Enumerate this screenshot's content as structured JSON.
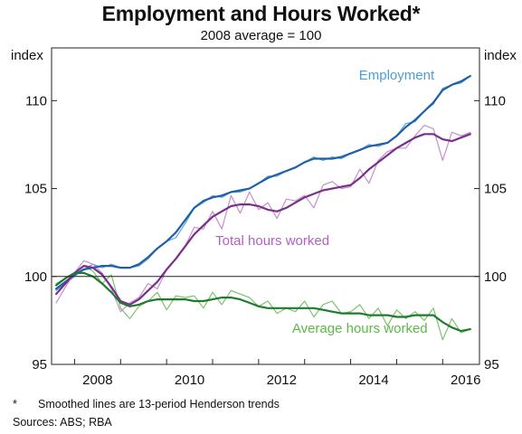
{
  "chart_data": {
    "type": "line",
    "title": "Employment and Hours Worked*",
    "subtitle": "2008 average = 100",
    "ylabel": "index",
    "ylim": [
      95,
      113
    ],
    "yticks": [
      95,
      100,
      105,
      110
    ],
    "xlim": [
      2007.5,
      2016.8
    ],
    "xticks": [
      2008,
      2010,
      2012,
      2014,
      2016
    ],
    "reference_line": 100,
    "grid": false,
    "series": [
      {
        "name": "Employment",
        "color": "#5aa7dc",
        "style": "raw",
        "x": [
          2007.6,
          2007.8,
          2008.0,
          2008.2,
          2008.4,
          2008.6,
          2008.8,
          2009.0,
          2009.2,
          2009.4,
          2009.6,
          2009.8,
          2010.0,
          2010.2,
          2010.4,
          2010.6,
          2010.8,
          2011.0,
          2011.2,
          2011.4,
          2011.6,
          2011.8,
          2012.0,
          2012.2,
          2012.4,
          2012.6,
          2012.8,
          2013.0,
          2013.2,
          2013.4,
          2013.6,
          2013.8,
          2014.0,
          2014.2,
          2014.4,
          2014.6,
          2014.8,
          2015.0,
          2015.2,
          2015.4,
          2015.6,
          2015.8,
          2016.0,
          2016.2,
          2016.4,
          2016.6
        ],
        "values": [
          99.2,
          99.6,
          100.0,
          100.4,
          100.7,
          100.5,
          100.7,
          100.5,
          100.5,
          100.6,
          101.0,
          101.6,
          102.0,
          102.2,
          103.0,
          103.9,
          104.2,
          104.6,
          104.5,
          104.8,
          104.8,
          105.0,
          105.3,
          105.7,
          105.7,
          106.0,
          106.2,
          106.5,
          106.8,
          106.6,
          106.8,
          106.7,
          107.0,
          107.2,
          107.5,
          107.4,
          107.6,
          108.0,
          108.7,
          108.8,
          109.4,
          109.8,
          110.7,
          110.9,
          111.0,
          111.4
        ]
      },
      {
        "name": "",
        "color": "#1f5fa8",
        "style": "trend",
        "x": [
          2007.6,
          2007.8,
          2008.0,
          2008.2,
          2008.4,
          2008.6,
          2008.8,
          2009.0,
          2009.2,
          2009.4,
          2009.6,
          2009.8,
          2010.0,
          2010.2,
          2010.4,
          2010.6,
          2010.8,
          2011.0,
          2011.2,
          2011.4,
          2011.6,
          2011.8,
          2012.0,
          2012.2,
          2012.4,
          2012.6,
          2012.8,
          2013.0,
          2013.2,
          2013.4,
          2013.6,
          2013.8,
          2014.0,
          2014.2,
          2014.4,
          2014.6,
          2014.8,
          2015.0,
          2015.2,
          2015.4,
          2015.6,
          2015.8,
          2016.0,
          2016.2,
          2016.4,
          2016.6
        ],
        "values": [
          99.3,
          99.7,
          100.1,
          100.4,
          100.5,
          100.6,
          100.6,
          100.5,
          100.5,
          100.7,
          101.1,
          101.6,
          102.0,
          102.5,
          103.2,
          103.9,
          104.3,
          104.5,
          104.6,
          104.8,
          104.9,
          105.0,
          105.3,
          105.6,
          105.8,
          106.0,
          106.2,
          106.5,
          106.7,
          106.7,
          106.7,
          106.8,
          107.0,
          107.2,
          107.4,
          107.5,
          107.6,
          108.0,
          108.5,
          108.9,
          109.4,
          109.9,
          110.6,
          110.9,
          111.1,
          111.4
        ]
      },
      {
        "name": "Total hours worked",
        "color": "#c58ed2",
        "style": "raw",
        "x": [
          2007.6,
          2007.8,
          2008.0,
          2008.2,
          2008.4,
          2008.6,
          2008.8,
          2009.0,
          2009.2,
          2009.4,
          2009.6,
          2009.8,
          2010.0,
          2010.2,
          2010.4,
          2010.6,
          2010.8,
          2011.0,
          2011.2,
          2011.4,
          2011.6,
          2011.8,
          2012.0,
          2012.2,
          2012.4,
          2012.6,
          2012.8,
          2013.0,
          2013.2,
          2013.4,
          2013.6,
          2013.8,
          2014.0,
          2014.2,
          2014.4,
          2014.6,
          2014.8,
          2015.0,
          2015.2,
          2015.4,
          2015.6,
          2015.8,
          2016.0,
          2016.2,
          2016.4,
          2016.6
        ],
        "values": [
          98.5,
          99.4,
          100.2,
          100.9,
          100.7,
          100.2,
          99.3,
          98.0,
          98.5,
          98.8,
          99.6,
          99.3,
          100.4,
          101.0,
          101.7,
          102.8,
          102.7,
          103.7,
          102.7,
          104.6,
          103.6,
          104.8,
          103.8,
          104.2,
          103.3,
          104.4,
          104.3,
          104.6,
          103.9,
          105.2,
          105.4,
          105.0,
          105.1,
          106.1,
          105.3,
          106.6,
          107.1,
          107.3,
          107.3,
          108.0,
          108.6,
          108.4,
          106.6,
          108.2,
          108.0,
          108.2
        ]
      },
      {
        "name": "",
        "color": "#7a2f8a",
        "style": "trend",
        "x": [
          2007.6,
          2007.8,
          2008.0,
          2008.2,
          2008.4,
          2008.6,
          2008.8,
          2009.0,
          2009.2,
          2009.4,
          2009.6,
          2009.8,
          2010.0,
          2010.2,
          2010.4,
          2010.6,
          2010.8,
          2011.0,
          2011.2,
          2011.4,
          2011.6,
          2011.8,
          2012.0,
          2012.2,
          2012.4,
          2012.6,
          2012.8,
          2013.0,
          2013.2,
          2013.4,
          2013.6,
          2013.8,
          2014.0,
          2014.2,
          2014.4,
          2014.6,
          2014.8,
          2015.0,
          2015.2,
          2015.4,
          2015.6,
          2015.8,
          2016.0,
          2016.2,
          2016.4,
          2016.6
        ],
        "values": [
          99.0,
          99.6,
          100.2,
          100.6,
          100.5,
          100.1,
          99.4,
          98.6,
          98.4,
          98.7,
          99.2,
          99.7,
          100.4,
          101.0,
          101.7,
          102.4,
          102.9,
          103.4,
          103.7,
          104.0,
          104.1,
          104.1,
          104.0,
          103.8,
          103.7,
          103.9,
          104.2,
          104.5,
          104.7,
          104.9,
          105.0,
          105.1,
          105.2,
          105.6,
          106.1,
          106.5,
          106.9,
          107.3,
          107.6,
          107.9,
          108.1,
          108.1,
          107.8,
          107.7,
          107.9,
          108.1
        ]
      },
      {
        "name": "Average hours worked",
        "color": "#7cc36b",
        "style": "raw",
        "x": [
          2007.6,
          2007.8,
          2008.0,
          2008.2,
          2008.4,
          2008.6,
          2008.8,
          2009.0,
          2009.2,
          2009.4,
          2009.6,
          2009.8,
          2010.0,
          2010.2,
          2010.4,
          2010.6,
          2010.8,
          2011.0,
          2011.2,
          2011.4,
          2011.6,
          2011.8,
          2012.0,
          2012.2,
          2012.4,
          2012.6,
          2012.8,
          2013.0,
          2013.2,
          2013.4,
          2013.6,
          2013.8,
          2014.0,
          2014.2,
          2014.4,
          2014.6,
          2014.8,
          2015.0,
          2015.2,
          2015.4,
          2015.6,
          2015.8,
          2016.0,
          2016.2,
          2016.4,
          2016.6
        ],
        "values": [
          99.6,
          99.9,
          100.2,
          100.6,
          100.3,
          99.6,
          100.1,
          98.2,
          97.6,
          98.3,
          98.6,
          99.1,
          98.1,
          98.9,
          98.8,
          98.9,
          98.2,
          99.1,
          98.4,
          99.2,
          99.0,
          98.8,
          98.3,
          98.6,
          97.9,
          98.2,
          98.0,
          98.6,
          97.7,
          98.4,
          98.6,
          97.9,
          98.0,
          98.4,
          97.6,
          98.2,
          97.2,
          98.1,
          97.6,
          98.0,
          97.5,
          98.2,
          96.4,
          97.6,
          96.8,
          97.0
        ]
      },
      {
        "name": "",
        "color": "#1f7a30",
        "style": "trend",
        "x": [
          2007.6,
          2007.8,
          2008.0,
          2008.2,
          2008.4,
          2008.6,
          2008.8,
          2009.0,
          2009.2,
          2009.4,
          2009.6,
          2009.8,
          2010.0,
          2010.2,
          2010.4,
          2010.6,
          2010.8,
          2011.0,
          2011.2,
          2011.4,
          2011.6,
          2011.8,
          2012.0,
          2012.2,
          2012.4,
          2012.6,
          2012.8,
          2013.0,
          2013.2,
          2013.4,
          2013.6,
          2013.8,
          2014.0,
          2014.2,
          2014.4,
          2014.6,
          2014.8,
          2015.0,
          2015.2,
          2015.4,
          2015.6,
          2015.8,
          2016.0,
          2016.2,
          2016.4,
          2016.6
        ],
        "values": [
          99.5,
          99.9,
          100.2,
          100.2,
          100.0,
          99.6,
          99.1,
          98.5,
          98.3,
          98.4,
          98.6,
          98.7,
          98.7,
          98.7,
          98.7,
          98.6,
          98.6,
          98.7,
          98.8,
          98.8,
          98.7,
          98.5,
          98.3,
          98.2,
          98.2,
          98.2,
          98.2,
          98.2,
          98.2,
          98.1,
          98.0,
          97.9,
          97.9,
          97.9,
          97.8,
          97.8,
          97.8,
          97.7,
          97.7,
          97.8,
          97.8,
          97.8,
          97.4,
          97.1,
          96.9,
          97.0
        ]
      }
    ],
    "annotations": [
      {
        "text": "Employment",
        "color": "#4a9fd8",
        "x": 2015.0,
        "y": 111.2
      },
      {
        "text": "Total hours worked",
        "color": "#b35ec4",
        "x": 2012.3,
        "y": 101.8
      },
      {
        "text": "Average hours worked",
        "color": "#5cb848",
        "x": 2014.2,
        "y": 96.8
      }
    ]
  },
  "footnote": {
    "marker": "*",
    "text": "Smoothed lines are 13-period Henderson trends"
  },
  "sources": "Sources:  ABS; RBA"
}
